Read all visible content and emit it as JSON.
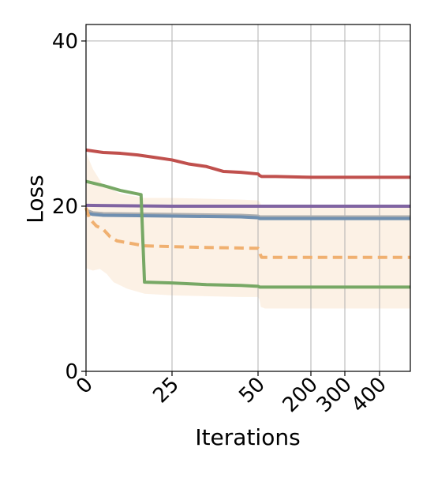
{
  "chart_data": {
    "type": "line",
    "title": "",
    "xlabel": "Iterations",
    "ylabel": "Loss",
    "ylim": [
      0,
      42
    ],
    "x_axis_note": "piecewise axis: 0-50 linear, then 50-450 compressed",
    "xticks": [
      0,
      25,
      50,
      200,
      300,
      400
    ],
    "xtick_labels": [
      "0",
      "25",
      "50",
      "200",
      "300",
      "400"
    ],
    "yticks": [
      0,
      20,
      40
    ],
    "ytick_labels": [
      "0",
      "20",
      "40"
    ],
    "xlim": [
      0,
      450
    ],
    "grid": true,
    "legend": "none",
    "series": [
      {
        "color": "#c0504d",
        "style": "solid",
        "points": [
          [
            0,
            26.8
          ],
          [
            5,
            26.5
          ],
          [
            10,
            26.4
          ],
          [
            15,
            26.2
          ],
          [
            20,
            25.9
          ],
          [
            25,
            25.6
          ],
          [
            30,
            25.1
          ],
          [
            35,
            24.8
          ],
          [
            40,
            24.2
          ],
          [
            45,
            24.1
          ],
          [
            50,
            23.9
          ],
          [
            55,
            23.7
          ],
          [
            60,
            23.6
          ],
          [
            100,
            23.6
          ],
          [
            200,
            23.5
          ],
          [
            300,
            23.5
          ],
          [
            450,
            23.5
          ]
        ]
      },
      {
        "color": "#8064a2",
        "style": "solid",
        "points": [
          [
            0,
            20.1
          ],
          [
            25,
            20.0
          ],
          [
            50,
            20.0
          ],
          [
            200,
            20.0
          ],
          [
            300,
            20.0
          ],
          [
            450,
            20.0
          ]
        ]
      },
      {
        "color": "#b0b0b0",
        "style": "solid",
        "points": [
          [
            0,
            19.5
          ],
          [
            2,
            19.2
          ],
          [
            5,
            19.1
          ],
          [
            25,
            19.0
          ],
          [
            45,
            18.9
          ],
          [
            50,
            18.8
          ],
          [
            55,
            18.7
          ],
          [
            200,
            18.7
          ],
          [
            450,
            18.7
          ]
        ]
      },
      {
        "color": "#6f8fb0",
        "style": "solid",
        "points": [
          [
            0,
            19.2
          ],
          [
            2,
            19.0
          ],
          [
            5,
            18.9
          ],
          [
            25,
            18.8
          ],
          [
            45,
            18.7
          ],
          [
            50,
            18.6
          ],
          [
            55,
            18.5
          ],
          [
            200,
            18.5
          ],
          [
            450,
            18.5
          ]
        ]
      },
      {
        "color": "#f0b070",
        "style": "dashed",
        "points": [
          [
            0,
            19.8
          ],
          [
            1,
            18.5
          ],
          [
            3,
            17.6
          ],
          [
            5,
            17.2
          ],
          [
            7,
            16.3
          ],
          [
            9,
            15.8
          ],
          [
            13,
            15.5
          ],
          [
            17,
            15.2
          ],
          [
            25,
            15.1
          ],
          [
            35,
            15.0
          ],
          [
            50,
            14.9
          ],
          [
            54,
            14.7
          ],
          [
            56,
            14.2
          ],
          [
            60,
            13.8
          ],
          [
            200,
            13.8
          ],
          [
            300,
            13.8
          ],
          [
            450,
            13.8
          ]
        ]
      },
      {
        "color": "#77a865",
        "style": "solid",
        "points": [
          [
            0,
            23.0
          ],
          [
            5,
            22.5
          ],
          [
            10,
            21.9
          ],
          [
            16,
            21.4
          ],
          [
            17,
            10.8
          ],
          [
            25,
            10.7
          ],
          [
            35,
            10.5
          ],
          [
            45,
            10.4
          ],
          [
            50,
            10.3
          ],
          [
            55,
            10.2
          ],
          [
            200,
            10.2
          ],
          [
            300,
            10.2
          ],
          [
            450,
            10.2
          ]
        ]
      }
    ],
    "band": {
      "color": "#f0b070",
      "opacity": 0.18,
      "upper": [
        [
          0,
          26.5
        ],
        [
          2,
          24.5
        ],
        [
          5,
          22.5
        ],
        [
          10,
          21.5
        ],
        [
          17,
          21.0
        ],
        [
          25,
          21.0
        ],
        [
          45,
          20.8
        ],
        [
          50,
          20.7
        ],
        [
          55,
          20.5
        ],
        [
          60,
          20.0
        ],
        [
          200,
          20.0
        ],
        [
          450,
          20.0
        ]
      ],
      "lower": [
        [
          0,
          12.5
        ],
        [
          2,
          12.2
        ],
        [
          4,
          12.4
        ],
        [
          6,
          11.8
        ],
        [
          8,
          10.8
        ],
        [
          12,
          10.0
        ],
        [
          17,
          9.4
        ],
        [
          25,
          9.2
        ],
        [
          45,
          9.0
        ],
        [
          50,
          9.0
        ],
        [
          54,
          8.7
        ],
        [
          58,
          7.8
        ],
        [
          70,
          7.6
        ],
        [
          200,
          7.6
        ],
        [
          450,
          7.6
        ]
      ]
    }
  }
}
